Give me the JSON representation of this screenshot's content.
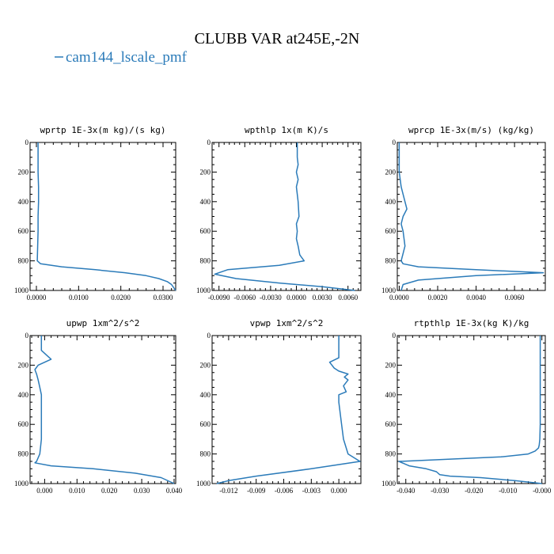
{
  "figure": {
    "title": "CLUBB VAR at245E,-2N",
    "legend": {
      "label": "cam144_lscale_pmf",
      "color": "#2b7bb9"
    }
  },
  "chart_data": [
    {
      "type": "line",
      "title": "wprtp  1E-3x(m kg)/(s kg)",
      "xlim": [
        -0.0015,
        0.033
      ],
      "ylim": [
        1000,
        0
      ],
      "xticks": [
        0.0,
        0.01,
        0.02,
        0.03
      ],
      "xtick_labels": [
        "0.0000",
        "0.0100",
        "0.0200",
        "0.0300"
      ],
      "yticks": [
        0,
        200,
        400,
        600,
        800,
        1000
      ],
      "ytick_labels": [
        "0",
        "200",
        "400",
        "600",
        "800",
        "1000"
      ],
      "series": [
        {
          "color": "#2b7bb9",
          "x": [
            0.0004,
            0.0004,
            0.0004,
            0.0005,
            0.0005,
            0.0004,
            0.0004,
            0.0003,
            0.0002,
            0.001,
            0.006,
            0.014,
            0.021,
            0.026,
            0.029,
            0.031,
            0.032,
            0.033
          ],
          "y": [
            0,
            100,
            200,
            300,
            400,
            500,
            600,
            700,
            800,
            820,
            840,
            860,
            880,
            900,
            920,
            940,
            960,
            1000
          ]
        }
      ]
    },
    {
      "type": "line",
      "title": "wpthlp  1x(m K)/s",
      "xlim": [
        -0.0098,
        0.0075
      ],
      "ylim": [
        1000,
        0
      ],
      "xticks": [
        -0.009,
        -0.006,
        -0.003,
        0.0,
        0.003,
        0.006
      ],
      "xtick_labels": [
        "-0.0090",
        "-0.0060",
        "-0.0030",
        "0.0000",
        "0.0030",
        "0.0060"
      ],
      "yticks": [
        0,
        200,
        400,
        600,
        800,
        1000
      ],
      "ytick_labels": [
        "0",
        "200",
        "400",
        "600",
        "800",
        "1000"
      ],
      "series": [
        {
          "color": "#2b7bb9",
          "x": [
            0.0001,
            0.0001,
            0.0002,
            0.0,
            0.0002,
            0.0,
            0.0001,
            0.0002,
            0.0003,
            0.0,
            0.0001,
            0.0,
            0.0002,
            0.0004,
            0.0009,
            -0.002,
            -0.008,
            -0.0095,
            -0.007,
            -0.002,
            0.003,
            0.0068
          ],
          "y": [
            0,
            100,
            150,
            200,
            250,
            300,
            350,
            400,
            500,
            550,
            600,
            650,
            700,
            760,
            800,
            830,
            860,
            890,
            920,
            950,
            975,
            1000
          ]
        }
      ]
    },
    {
      "type": "line",
      "title": "wprcp  1E-3x(m/s) (kg/kg)",
      "xlim": [
        -0.0001,
        0.0076
      ],
      "ylim": [
        1000,
        0
      ],
      "xticks": [
        0.0,
        0.002,
        0.004,
        0.006
      ],
      "xtick_labels": [
        "0.0000",
        "0.0020",
        "0.0040",
        "0.0060"
      ],
      "yticks": [
        0,
        200,
        400,
        600,
        800,
        1000
      ],
      "ytick_labels": [
        "0",
        "200",
        "400",
        "600",
        "800",
        "1000"
      ],
      "series": [
        {
          "color": "#2b7bb9",
          "x": [
            0.0,
            0.0,
            0.0,
            0.0001,
            0.0002,
            0.0003,
            0.0004,
            0.0002,
            0.0001,
            0.0002,
            0.0003,
            0.0002,
            0.0001,
            0.0002,
            0.001,
            0.004,
            0.0075,
            0.004,
            0.001,
            0.0002,
            0.0001
          ],
          "y": [
            0,
            100,
            200,
            300,
            350,
            400,
            450,
            500,
            550,
            600,
            700,
            750,
            800,
            820,
            840,
            860,
            880,
            900,
            930,
            960,
            1000
          ]
        }
      ]
    },
    {
      "type": "line",
      "title": "upwp  1xm^2/s^2",
      "xlim": [
        -0.0045,
        0.0405
      ],
      "ylim": [
        1000,
        0
      ],
      "xticks": [
        0.0,
        0.01,
        0.02,
        0.03,
        0.04
      ],
      "xtick_labels": [
        "0.000",
        "0.010",
        "0.020",
        "0.030",
        "0.040"
      ],
      "yticks": [
        0,
        200,
        400,
        600,
        800,
        1000
      ],
      "ytick_labels": [
        "0",
        "200",
        "400",
        "600",
        "800",
        "1000"
      ],
      "series": [
        {
          "color": "#2b7bb9",
          "x": [
            -0.001,
            -0.001,
            0.0005,
            0.002,
            -0.002,
            -0.003,
            -0.0025,
            -0.002,
            -0.0015,
            -0.001,
            -0.001,
            -0.001,
            -0.001,
            -0.0015,
            -0.0025,
            -0.003,
            0.002,
            0.015,
            0.028,
            0.036,
            0.04
          ],
          "y": [
            0,
            100,
            130,
            160,
            200,
            230,
            260,
            300,
            350,
            400,
            500,
            600,
            700,
            800,
            850,
            860,
            880,
            900,
            930,
            960,
            1000
          ]
        }
      ]
    },
    {
      "type": "line",
      "title": "vpwp  1xm^2/s^2",
      "xlim": [
        -0.0138,
        0.0024
      ],
      "ylim": [
        1000,
        0
      ],
      "xticks": [
        -0.012,
        -0.009,
        -0.006,
        -0.003,
        0.0
      ],
      "xtick_labels": [
        "-0.012",
        "-0.009",
        "-0.006",
        "-0.003",
        "0.000"
      ],
      "yticks": [
        0,
        200,
        400,
        600,
        800,
        1000
      ],
      "ytick_labels": [
        "0",
        "200",
        "400",
        "600",
        "800",
        "1000"
      ],
      "series": [
        {
          "color": "#2b7bb9",
          "x": [
            0.0,
            0.0,
            -0.001,
            -0.0005,
            0.0,
            0.001,
            0.0006,
            0.001,
            0.0005,
            0.0008,
            0.0,
            0.0,
            0.0003,
            0.0005,
            0.001,
            0.0023,
            -0.003,
            -0.009,
            -0.012,
            -0.0133
          ],
          "y": [
            0,
            150,
            180,
            220,
            240,
            260,
            280,
            300,
            340,
            380,
            400,
            450,
            600,
            700,
            800,
            850,
            900,
            950,
            980,
            1000
          ]
        }
      ]
    },
    {
      "type": "line",
      "title": "rtpthlp  1E-3x(kg K)/kg",
      "xlim": [
        -0.0425,
        0.001
      ],
      "ylim": [
        1000,
        0
      ],
      "xticks": [
        -0.04,
        -0.03,
        -0.02,
        -0.01,
        0.0
      ],
      "xtick_labels": [
        "-0.040",
        "-0.030",
        "-0.020",
        "-0.010",
        "-0.000"
      ],
      "yticks": [
        0,
        200,
        400,
        600,
        800,
        1000
      ],
      "ytick_labels": [
        "0",
        "200",
        "400",
        "600",
        "800",
        "1000"
      ],
      "series": [
        {
          "color": "#2b7bb9",
          "x": [
            -0.0005,
            -0.0005,
            -0.0005,
            -0.0005,
            -0.0006,
            -0.0008,
            -0.001,
            -0.002,
            -0.004,
            -0.012,
            -0.042,
            -0.039,
            -0.034,
            -0.031,
            -0.03,
            -0.027,
            -0.018,
            -0.008,
            0.0
          ],
          "y": [
            0,
            200,
            400,
            600,
            700,
            740,
            760,
            780,
            800,
            820,
            850,
            880,
            900,
            920,
            940,
            950,
            960,
            980,
            1000
          ]
        }
      ]
    }
  ]
}
